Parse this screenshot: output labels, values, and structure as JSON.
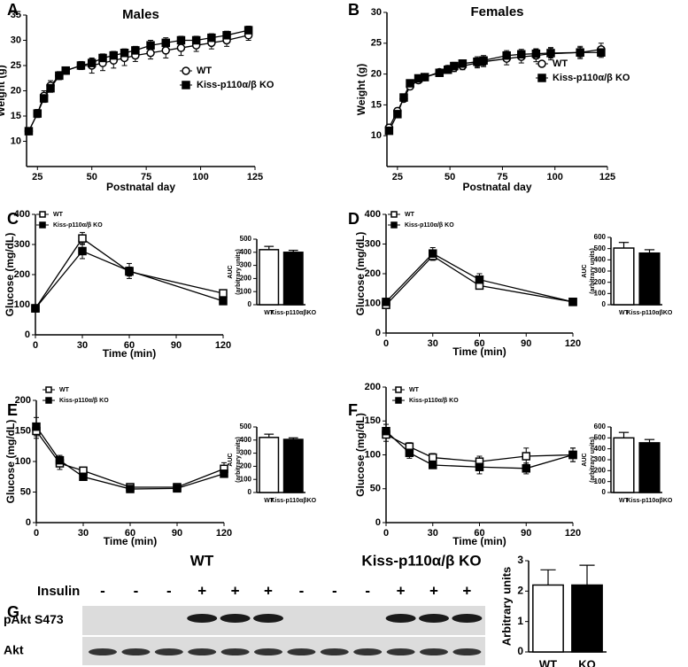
{
  "chart_data": [
    {
      "type": "line",
      "panel": "A",
      "title": "Males",
      "xlabel": "Postnatal day",
      "ylabel": "Weight (g)",
      "xlim": [
        20,
        125
      ],
      "xticks": [
        25,
        50,
        75,
        100,
        125
      ],
      "ylim": [
        5,
        35
      ],
      "yticks": [
        10,
        15,
        20,
        25,
        30,
        35
      ],
      "x": [
        21,
        25,
        28,
        31,
        35,
        38,
        45,
        50,
        55,
        60,
        65,
        70,
        77,
        84,
        91,
        98,
        105,
        112,
        122
      ],
      "series": [
        {
          "name": "WT",
          "marker": "circle",
          "filled": false,
          "color": "#000000",
          "values": [
            12,
            15.5,
            19,
            21,
            23,
            24,
            25,
            25,
            25.5,
            26,
            26.5,
            27,
            27.5,
            28,
            28.5,
            29,
            29.5,
            30,
            31
          ],
          "errors": [
            0.5,
            0.8,
            1,
            1,
            0.8,
            0.7,
            0.8,
            1.5,
            1.5,
            1.5,
            1.5,
            1.2,
            1.2,
            1.5,
            1.5,
            1.2,
            1.2,
            1.2,
            1
          ]
        },
        {
          "name": "Kiss-p110α/β KO",
          "marker": "square",
          "filled": true,
          "color": "#000000",
          "values": [
            12,
            15.5,
            18.5,
            20.5,
            23,
            24,
            25,
            25.5,
            26.5,
            27,
            27.5,
            28,
            29,
            29.5,
            30,
            30,
            30.5,
            31,
            32
          ],
          "errors": [
            0.5,
            0.6,
            0.8,
            0.8,
            0.6,
            0.6,
            0.6,
            0.8,
            0.8,
            0.8,
            0.8,
            0.8,
            1,
            1,
            0.8,
            0.8,
            0.8,
            0.8,
            0.8
          ]
        }
      ]
    },
    {
      "type": "line",
      "panel": "B",
      "title": "Females",
      "xlabel": "Postnatal day",
      "ylabel": "Weight (g)",
      "xlim": [
        20,
        125
      ],
      "xticks": [
        25,
        50,
        75,
        100,
        125
      ],
      "ylim": [
        5,
        30
      ],
      "yticks": [
        10,
        15,
        20,
        25,
        30
      ],
      "x": [
        21,
        25,
        28,
        31,
        35,
        38,
        45,
        49,
        52,
        56,
        63,
        66,
        77,
        84,
        91,
        98,
        112,
        122
      ],
      "series": [
        {
          "name": "WT",
          "marker": "circle",
          "filled": false,
          "color": "#000000",
          "values": [
            11.3,
            14,
            16,
            18,
            19,
            19.5,
            20.3,
            20.8,
            21,
            21.3,
            21.8,
            22,
            22.5,
            22.8,
            23,
            23.3,
            23.5,
            24
          ],
          "errors": [
            0.5,
            0.5,
            0.5,
            0.5,
            0.5,
            0.5,
            0.5,
            0.6,
            0.6,
            0.6,
            0.8,
            0.8,
            1,
            1,
            1,
            1,
            1,
            1
          ]
        },
        {
          "name": "Kiss-p110α/β KO",
          "marker": "square",
          "filled": true,
          "color": "#000000",
          "values": [
            10.8,
            13.5,
            16.2,
            18.5,
            19.3,
            19.5,
            20.2,
            20.7,
            21.3,
            21.7,
            22,
            22.2,
            23,
            23.2,
            23.3,
            23.4,
            23.5,
            23.5
          ],
          "errors": [
            0.4,
            0.5,
            0.5,
            0.5,
            0.5,
            0.5,
            0.5,
            0.6,
            0.6,
            0.6,
            0.8,
            0.8,
            0.8,
            0.8,
            0.8,
            0.8,
            0.8,
            0.8
          ]
        }
      ]
    },
    {
      "type": "line",
      "panel": "C",
      "xlabel": "Time (min)",
      "ylabel": "Glucose (mg/dL)",
      "xlim": [
        0,
        120
      ],
      "xticks": [
        0,
        30,
        60,
        90,
        120
      ],
      "ylim": [
        0,
        400
      ],
      "yticks": [
        0,
        100,
        200,
        300,
        400
      ],
      "x": [
        0,
        30,
        60,
        120
      ],
      "series": [
        {
          "name": "WT",
          "marker": "square",
          "filled": false,
          "color": "#000000",
          "values": [
            88,
            320,
            210,
            138
          ],
          "errors": [
            8,
            20,
            15,
            8
          ]
        },
        {
          "name": "Kiss-p110α/β KO",
          "marker": "square",
          "filled": true,
          "color": "#000000",
          "values": [
            88,
            278,
            212,
            112
          ],
          "errors": [
            8,
            25,
            25,
            6
          ]
        }
      ]
    },
    {
      "type": "bar",
      "ylabel_lines": [
        "AUC",
        "(arbitrary units)"
      ],
      "ylim": [
        0,
        500
      ],
      "yticks": [
        0,
        100,
        200,
        300,
        400,
        500
      ],
      "categories": [
        "WT",
        "Kiss-p110αβKO"
      ],
      "colors": [
        "#ffffff",
        "#000000"
      ],
      "values": [
        420,
        400
      ],
      "errors": [
        25,
        15
      ]
    },
    {
      "type": "line",
      "panel": "D",
      "xlabel": "Time (min)",
      "ylabel": "Glucose (mg/dL)",
      "xlim": [
        0,
        120
      ],
      "xticks": [
        0,
        30,
        60,
        90,
        120
      ],
      "ylim": [
        0,
        400
      ],
      "yticks": [
        0,
        100,
        200,
        300,
        400
      ],
      "x": [
        0,
        30,
        60,
        120
      ],
      "series": [
        {
          "name": "WT",
          "marker": "square",
          "filled": false,
          "color": "#000000",
          "values": [
            95,
            260,
            160,
            105
          ],
          "errors": [
            8,
            15,
            10,
            5
          ]
        },
        {
          "name": "Kiss-p110α/β KO",
          "marker": "square",
          "filled": true,
          "color": "#000000",
          "values": [
            105,
            268,
            180,
            105
          ],
          "errors": [
            8,
            20,
            20,
            5
          ]
        }
      ]
    },
    {
      "type": "bar",
      "ylabel_lines": [
        "AUC",
        "(arbitrary units)"
      ],
      "ylim": [
        0,
        600
      ],
      "yticks": [
        0,
        100,
        200,
        300,
        400,
        500,
        600
      ],
      "categories": [
        "WT",
        "Kiss-p110αβKO"
      ],
      "colors": [
        "#ffffff",
        "#000000"
      ],
      "values": [
        505,
        460
      ],
      "errors": [
        50,
        30
      ]
    },
    {
      "type": "line",
      "panel": "E",
      "xlabel": "Time (min)",
      "ylabel": "Glucose (mg/dL)",
      "xlim": [
        0,
        120
      ],
      "xticks": [
        0,
        30,
        60,
        90,
        120
      ],
      "ylim": [
        0,
        200
      ],
      "yticks": [
        0,
        50,
        100,
        150,
        200
      ],
      "x": [
        0,
        15,
        30,
        60,
        90,
        120
      ],
      "series": [
        {
          "name": "WT",
          "marker": "square",
          "filled": false,
          "color": "#000000",
          "values": [
            150,
            97,
            85,
            58,
            58,
            88
          ],
          "errors": [
            12,
            10,
            5,
            4,
            4,
            10
          ]
        },
        {
          "name": "Kiss-p110α/β KO",
          "marker": "square",
          "filled": true,
          "color": "#000000",
          "values": [
            157,
            102,
            75,
            55,
            56,
            80
          ],
          "errors": [
            15,
            8,
            5,
            3,
            3,
            6
          ]
        }
      ]
    },
    {
      "type": "bar",
      "ylabel_lines": [
        "AUC",
        "(arbitrary units)"
      ],
      "ylim": [
        0,
        500
      ],
      "yticks": [
        0,
        100,
        200,
        300,
        400,
        500
      ],
      "categories": [
        "WT",
        "Kiss-p110αβKO"
      ],
      "colors": [
        "#ffffff",
        "#000000"
      ],
      "values": [
        420,
        405
      ],
      "errors": [
        25,
        12
      ]
    },
    {
      "type": "line",
      "panel": "F",
      "xlabel": "Time (min)",
      "ylabel": "Glucose (mg/dL)",
      "xlim": [
        0,
        120
      ],
      "xticks": [
        0,
        30,
        60,
        90,
        120
      ],
      "ylim": [
        0,
        200
      ],
      "yticks": [
        0,
        50,
        100,
        150,
        200
      ],
      "x": [
        0,
        15,
        30,
        60,
        90,
        120
      ],
      "series": [
        {
          "name": "WT",
          "marker": "square",
          "filled": false,
          "color": "#000000",
          "values": [
            130,
            112,
            96,
            90,
            98,
            100
          ],
          "errors": [
            10,
            6,
            6,
            8,
            12,
            10
          ]
        },
        {
          "name": "Kiss-p110α/β KO",
          "marker": "square",
          "filled": true,
          "color": "#000000",
          "values": [
            135,
            103,
            85,
            82,
            80,
            100
          ],
          "errors": [
            10,
            8,
            5,
            10,
            8,
            10
          ]
        }
      ]
    },
    {
      "type": "bar",
      "ylabel_lines": [
        "AUC",
        "(arbitrary units)"
      ],
      "ylim": [
        0,
        600
      ],
      "yticks": [
        0,
        100,
        200,
        300,
        400,
        500,
        600
      ],
      "categories": [
        "WT",
        "Kiss-p110αβKO"
      ],
      "colors": [
        "#ffffff",
        "#000000"
      ],
      "values": [
        500,
        455
      ],
      "errors": [
        50,
        30
      ]
    },
    {
      "type": "bar",
      "ylabel_lines": [
        "Arbitrary units"
      ],
      "ylim": [
        0,
        3
      ],
      "yticks": [
        0,
        1,
        2,
        3
      ],
      "categories": [
        "WT",
        "KO"
      ],
      "colors": [
        "#ffffff",
        "#000000"
      ],
      "values": [
        2.2,
        2.2
      ],
      "errors": [
        0.5,
        0.65
      ]
    }
  ],
  "blot": {
    "panel": "G",
    "groups": [
      "WT",
      "Kiss-p110α/β KO"
    ],
    "treatment": "Insulin",
    "lanes": [
      "-",
      "-",
      "-",
      "+",
      "+",
      "+",
      "-",
      "-",
      "-",
      "+",
      "+",
      "+"
    ],
    "rows": [
      "pAkt S473",
      "Akt"
    ]
  }
}
